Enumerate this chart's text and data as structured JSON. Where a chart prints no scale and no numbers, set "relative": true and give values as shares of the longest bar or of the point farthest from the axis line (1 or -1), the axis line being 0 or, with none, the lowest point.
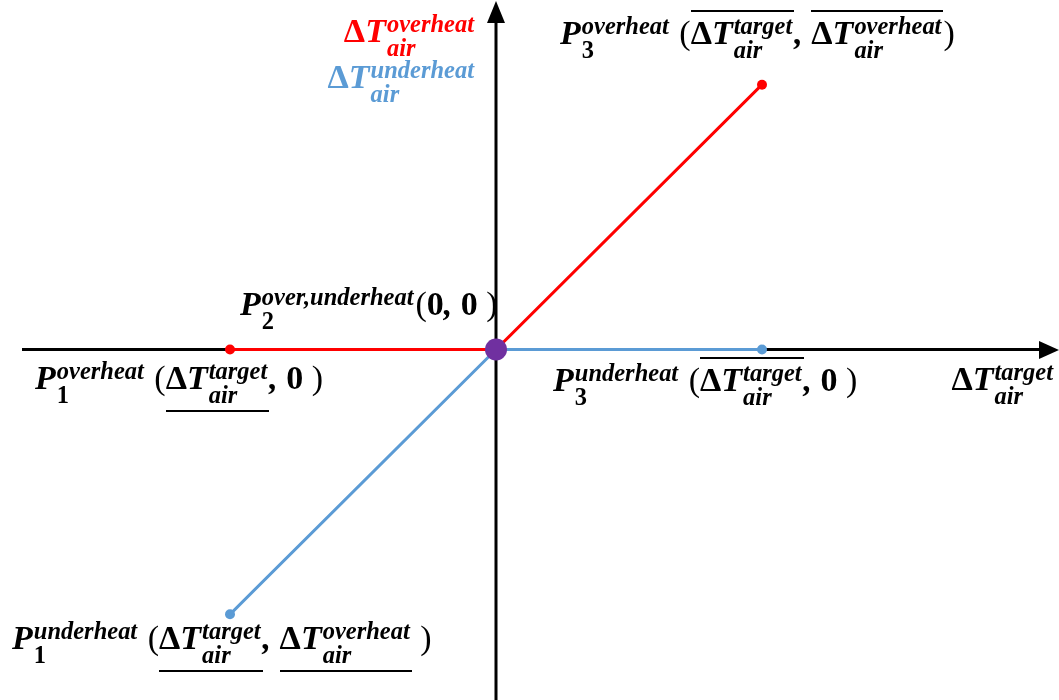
{
  "chart_data": {
    "type": "line",
    "categories": [
      null,
      null,
      null
    ],
    "relative": true,
    "marker": "circle",
    "line_style": "solid",
    "series": [
      {
        "name": "ΔT$^{overheat}$$_{air}$",
        "color": "#ff0000",
        "values": [
          0,
          0,
          1
        ]
      },
      {
        "name": "ΔT$^{underheat}$$_{air}$",
        "color": "#5b9bd5",
        "values": [
          -1,
          0,
          0
        ]
      },
      {
        "color": "#7030a0",
        "values": [
          null,
          0,
          null
        ]
      }
    ],
    "xlabel": "ΔT$^{target}$$_{air}$",
    "annotations": [
      "P$^{overheat}$$_{3}$ (Δ̅T̅$^{t̅a̅r̅g̅e̅t̅}$$_{a̅i̅r̅}$, Δ̅T̅$^{o̅v̅e̅r̅h̅e̅a̅t̅}$$_{a̅i̅r̅}$)",
      "P$^{over,underheat}$$_{2}$(0, 0 )",
      "P$^{overheat}$$_{1}$ (Δ̲T̲$^{t̲a̲r̲g̲e̲t̲}$$_{a̲i̲r̲}$, 0 )",
      "P$^{underheat}$$_{3}$ (Δ̅T̅$^{t̅a̅r̅g̅e̅t̅}$$_{a̅i̅r̅}$, 0 )",
      "P$^{underheat}$$_{1}$ (Δ̲T̲$^{t̲a̲r̲g̲e̲t̲}$$_{a̲i̲r̲}$, Δ̲T̲$^{o̲v̲e̲r̲h̲e̲a̲t̲}$$_{a̲i̲r̲}$ )"
    ]
  }
}
